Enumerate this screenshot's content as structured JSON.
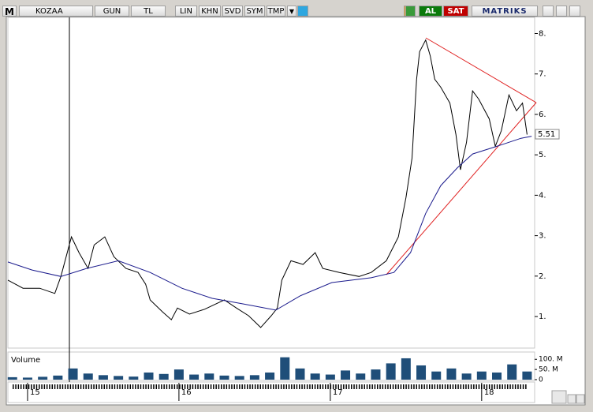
{
  "toolbar": {
    "logo": "M",
    "symbol": "KOZAA",
    "buttons": [
      "GUN",
      "TL",
      "LIN",
      "KHN",
      "SVD",
      "SYM",
      "TMP"
    ],
    "buy": "AL",
    "sell": "SAT",
    "brand": "MATRIKS"
  },
  "chart_data": [
    {
      "type": "line",
      "xlim": [
        14.87,
        18.35
      ],
      "xticks": [
        15,
        16,
        17,
        18
      ],
      "ylim": [
        0.22,
        8.4
      ],
      "yticks": [
        {
          "value": 1,
          "label": "1."
        },
        {
          "value": 2,
          "label": "2."
        },
        {
          "value": 3,
          "label": "3."
        },
        {
          "value": 4,
          "label": "4."
        },
        {
          "value": 5,
          "label": "5."
        },
        {
          "value": 6,
          "label": "6."
        },
        {
          "value": 7,
          "label": "7."
        },
        {
          "value": 8,
          "label": "8."
        }
      ],
      "last_value": 5.51,
      "series": [
        {
          "color": "#000000",
          "x": [
            14.87,
            14.97,
            15.08,
            15.18,
            15.22,
            15.29,
            15.34,
            15.4,
            15.44,
            15.51,
            15.57,
            15.65,
            15.73,
            15.78,
            15.81,
            15.89,
            15.95,
            15.99,
            16.07,
            16.17,
            16.3,
            16.38,
            16.46,
            16.54,
            16.61,
            16.65,
            16.68,
            16.74,
            16.82,
            16.9,
            16.95,
            17.06,
            17.19,
            17.27,
            17.37,
            17.45,
            17.5,
            17.54,
            17.57,
            17.59,
            17.63,
            17.66,
            17.69,
            17.73,
            17.79,
            17.83,
            17.86,
            17.9,
            17.94,
            17.98,
            18.05,
            18.09,
            18.13,
            18.18,
            18.23,
            18.27,
            18.3
          ],
          "values": [
            1.9,
            1.7,
            1.7,
            1.57,
            1.99,
            2.97,
            2.58,
            2.19,
            2.77,
            2.97,
            2.48,
            2.19,
            2.09,
            1.8,
            1.41,
            1.12,
            0.92,
            1.21,
            1.06,
            1.18,
            1.41,
            1.21,
            1.02,
            0.73,
            1.02,
            1.21,
            1.9,
            2.38,
            2.29,
            2.58,
            2.19,
            2.09,
            1.99,
            2.09,
            2.38,
            2.97,
            3.94,
            4.92,
            6.87,
            7.55,
            7.84,
            7.45,
            6.87,
            6.67,
            6.28,
            5.5,
            4.63,
            5.31,
            6.58,
            6.38,
            5.89,
            5.21,
            5.6,
            6.48,
            6.09,
            6.28,
            5.5
          ]
        },
        {
          "color": "#1a1a8c",
          "x": [
            14.87,
            15.03,
            15.22,
            15.39,
            15.6,
            15.81,
            16.02,
            16.22,
            16.43,
            16.64,
            16.8,
            17.01,
            17.27,
            17.42,
            17.53,
            17.63,
            17.73,
            17.84,
            17.94,
            18.1,
            18.26,
            18.33
          ],
          "values": [
            2.35,
            2.15,
            1.99,
            2.19,
            2.38,
            2.09,
            1.7,
            1.45,
            1.31,
            1.16,
            1.51,
            1.84,
            1.96,
            2.09,
            2.58,
            3.55,
            4.24,
            4.68,
            5.02,
            5.21,
            5.41,
            5.46
          ]
        }
      ]
    },
    {
      "type": "bar",
      "title": "Volume",
      "color": "#1f4e79",
      "xlim": [
        14.87,
        18.35
      ],
      "ylim": [
        0,
        132
      ],
      "yticks": [
        0,
        {
          "value": 50,
          "label": "50. M"
        },
        {
          "value": 100,
          "label": "100. M"
        }
      ],
      "x": [
        14.9,
        15.0,
        15.1,
        15.2,
        15.3,
        15.4,
        15.5,
        15.6,
        15.7,
        15.8,
        15.9,
        16.0,
        16.1,
        16.2,
        16.3,
        16.4,
        16.5,
        16.6,
        16.7,
        16.8,
        16.9,
        17.0,
        17.1,
        17.2,
        17.3,
        17.4,
        17.5,
        17.6,
        17.7,
        17.8,
        17.9,
        18.0,
        18.1,
        18.2,
        18.3
      ],
      "values": [
        12,
        10,
        14,
        20,
        55,
        30,
        22,
        18,
        15,
        35,
        28,
        50,
        25,
        30,
        20,
        18,
        22,
        35,
        110,
        55,
        30,
        25,
        45,
        30,
        50,
        80,
        105,
        70,
        40,
        55,
        30,
        40,
        35,
        75,
        40
      ]
    }
  ]
}
